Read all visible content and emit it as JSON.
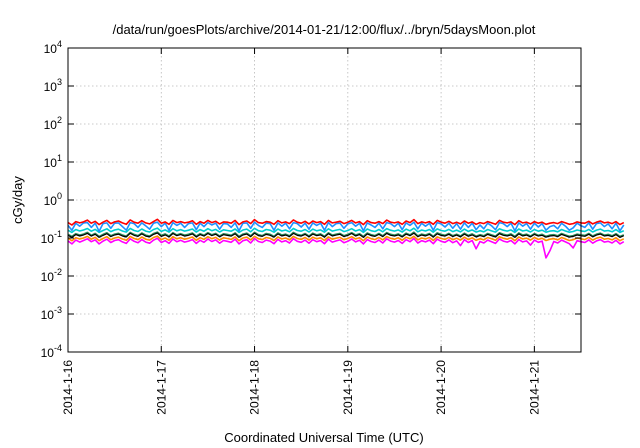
{
  "chart_data": {
    "type": "line",
    "title": "/data/run/goesPlots/archive/2014-01-21/12:00/flux/../bryn/5daysMoon.plot",
    "xlabel": "Coordinated Universal Time (UTC)",
    "ylabel": "cGy/day",
    "yscale": "log",
    "ylim": [
      0.0001,
      10000
    ],
    "xlim": [
      "2014-01-16 00:00",
      "2014-01-21 12:00"
    ],
    "x_ticks": [
      "2014-1-16",
      "2014-1-17",
      "2014-1-18",
      "2014-1-19",
      "2014-1-20",
      "2014-1-21"
    ],
    "y_ticks": [
      {
        "value": 0.0001,
        "base": "10",
        "exp": "-4"
      },
      {
        "value": 0.001,
        "base": "10",
        "exp": "-3"
      },
      {
        "value": 0.01,
        "base": "10",
        "exp": "-2"
      },
      {
        "value": 0.1,
        "base": "10",
        "exp": "-1"
      },
      {
        "value": 1,
        "base": "10",
        "exp": "0"
      },
      {
        "value": 10,
        "base": "10",
        "exp": "1"
      },
      {
        "value": 100,
        "base": "10",
        "exp": "2"
      },
      {
        "value": 1000,
        "base": "10",
        "exp": "3"
      },
      {
        "value": 10000,
        "base": "10",
        "exp": "4"
      }
    ],
    "grid": true,
    "legend": "none",
    "sample_interval_hours": 1,
    "series": [
      {
        "color": "#ff00ff",
        "values": [
          0.084,
          0.07,
          0.088,
          0.078,
          0.086,
          0.095,
          0.08,
          0.089,
          0.07,
          0.083,
          0.093,
          0.076,
          0.086,
          0.09,
          0.079,
          0.072,
          0.095,
          0.082,
          0.075,
          0.091,
          0.078,
          0.073,
          0.088,
          0.098,
          0.076,
          0.085,
          0.072,
          0.094,
          0.08,
          0.087,
          0.078,
          0.083,
          0.091,
          0.072,
          0.087,
          0.077,
          0.094,
          0.081,
          0.089,
          0.073,
          0.086,
          0.082,
          0.077,
          0.093,
          0.07,
          0.085,
          0.09,
          0.074,
          0.097,
          0.081,
          0.076,
          0.088,
          0.083,
          0.071,
          0.092,
          0.079,
          0.085,
          0.074,
          0.096,
          0.082,
          0.077,
          0.088,
          0.073,
          0.09,
          0.08,
          0.086,
          0.071,
          0.093,
          0.078,
          0.084,
          0.089,
          0.075,
          0.082,
          0.094,
          0.079,
          0.087,
          0.07,
          0.091,
          0.081,
          0.076,
          0.088,
          0.074,
          0.095,
          0.083,
          0.078,
          0.086,
          0.072,
          0.09,
          0.08,
          0.097,
          0.074,
          0.085,
          0.079,
          0.088,
          0.071,
          0.093,
          0.082,
          0.077,
          0.089,
          0.075,
          0.084,
          0.063,
          0.09,
          0.076,
          0.086,
          0.052,
          0.081,
          0.074,
          0.088,
          0.08,
          0.072,
          0.094,
          0.083,
          0.078,
          0.086,
          0.07,
          0.091,
          0.079,
          0.084,
          0.065,
          0.088,
          0.077,
          0.083,
          0.03,
          0.046,
          0.081,
          0.074,
          0.088,
          0.079,
          0.071,
          0.055,
          0.085,
          0.08,
          0.076,
          0.089,
          0.073,
          0.084,
          0.09,
          0.078,
          0.082,
          0.074,
          0.087,
          0.07,
          0.08
        ]
      },
      {
        "color": "#ff8c00",
        "values": [
          0.098,
          0.085,
          0.102,
          0.094,
          0.1,
          0.11,
          0.093,
          0.104,
          0.085,
          0.097,
          0.108,
          0.09,
          0.1,
          0.105,
          0.094,
          0.087,
          0.11,
          0.097,
          0.09,
          0.106,
          0.093,
          0.088,
          0.103,
          0.112,
          0.091,
          0.1,
          0.087,
          0.108,
          0.095,
          0.102,
          0.093,
          0.098,
          0.106,
          0.087,
          0.102,
          0.092,
          0.108,
          0.096,
          0.104,
          0.088,
          0.101,
          0.097,
          0.092,
          0.107,
          0.085,
          0.1,
          0.105,
          0.089,
          0.111,
          0.096,
          0.091,
          0.103,
          0.098,
          0.086,
          0.106,
          0.094,
          0.1,
          0.089,
          0.11,
          0.097,
          0.092,
          0.103,
          0.088,
          0.105,
          0.095,
          0.101,
          0.086,
          0.107,
          0.093,
          0.099,
          0.104,
          0.09,
          0.097,
          0.108,
          0.094,
          0.102,
          0.085,
          0.106,
          0.096,
          0.091,
          0.103,
          0.089,
          0.109,
          0.098,
          0.093,
          0.101,
          0.087,
          0.105,
          0.095,
          0.111,
          0.089,
          0.1,
          0.094,
          0.103,
          0.086,
          0.107,
          0.097,
          0.092,
          0.104,
          0.09,
          0.099,
          0.088,
          0.105,
          0.091,
          0.101,
          0.087,
          0.096,
          0.089,
          0.103,
          0.095,
          0.087,
          0.108,
          0.098,
          0.093,
          0.101,
          0.085,
          0.106,
          0.094,
          0.099,
          0.088,
          0.103,
          0.092,
          0.098,
          0.086,
          0.093,
          0.096,
          0.089,
          0.103,
          0.094,
          0.086,
          0.09,
          0.1,
          0.095,
          0.091,
          0.104,
          0.088,
          0.099,
          0.105,
          0.093,
          0.097,
          0.089,
          0.102,
          0.085,
          0.095
        ]
      },
      {
        "color": "#2e8b57",
        "values": [
          0.125,
          0.11,
          0.13,
          0.12,
          0.127,
          0.14,
          0.118,
          0.132,
          0.11,
          0.124,
          0.137,
          0.115,
          0.127,
          0.133,
          0.12,
          0.112,
          0.14,
          0.124,
          0.116,
          0.135,
          0.119,
          0.113,
          0.131,
          0.143,
          0.117,
          0.128,
          0.112,
          0.138,
          0.121,
          0.13,
          0.119,
          0.125,
          0.135,
          0.112,
          0.13,
          0.118,
          0.138,
          0.122,
          0.132,
          0.113,
          0.129,
          0.124,
          0.118,
          0.136,
          0.11,
          0.127,
          0.134,
          0.114,
          0.141,
          0.122,
          0.116,
          0.131,
          0.125,
          0.111,
          0.135,
          0.12,
          0.127,
          0.114,
          0.14,
          0.124,
          0.118,
          0.131,
          0.113,
          0.134,
          0.121,
          0.128,
          0.111,
          0.137,
          0.119,
          0.126,
          0.132,
          0.115,
          0.124,
          0.138,
          0.12,
          0.13,
          0.11,
          0.135,
          0.122,
          0.116,
          0.131,
          0.114,
          0.139,
          0.125,
          0.119,
          0.128,
          0.112,
          0.134,
          0.121,
          0.142,
          0.114,
          0.127,
          0.12,
          0.131,
          0.111,
          0.136,
          0.124,
          0.118,
          0.132,
          0.115,
          0.126,
          0.113,
          0.134,
          0.117,
          0.128,
          0.112,
          0.122,
          0.114,
          0.131,
          0.121,
          0.112,
          0.137,
          0.125,
          0.119,
          0.128,
          0.11,
          0.135,
          0.12,
          0.126,
          0.113,
          0.131,
          0.118,
          0.125,
          0.111,
          0.119,
          0.122,
          0.114,
          0.131,
          0.12,
          0.111,
          0.116,
          0.127,
          0.121,
          0.117,
          0.132,
          0.113,
          0.126,
          0.134,
          0.119,
          0.124,
          0.114,
          0.13,
          0.11,
          0.121
        ]
      },
      {
        "color": "#00ced1",
        "values": [
          0.16,
          0.14,
          0.167,
          0.153,
          0.162,
          0.178,
          0.151,
          0.168,
          0.14,
          0.158,
          0.175,
          0.147,
          0.162,
          0.17,
          0.153,
          0.143,
          0.179,
          0.158,
          0.148,
          0.172,
          0.152,
          0.144,
          0.167,
          0.182,
          0.149,
          0.163,
          0.143,
          0.176,
          0.155,
          0.166,
          0.152,
          0.16,
          0.172,
          0.143,
          0.166,
          0.151,
          0.176,
          0.156,
          0.168,
          0.144,
          0.164,
          0.158,
          0.151,
          0.173,
          0.14,
          0.162,
          0.171,
          0.146,
          0.18,
          0.156,
          0.148,
          0.167,
          0.16,
          0.142,
          0.172,
          0.153,
          0.162,
          0.146,
          0.178,
          0.158,
          0.151,
          0.167,
          0.144,
          0.171,
          0.155,
          0.163,
          0.142,
          0.175,
          0.152,
          0.161,
          0.168,
          0.147,
          0.158,
          0.176,
          0.153,
          0.166,
          0.14,
          0.172,
          0.156,
          0.148,
          0.167,
          0.146,
          0.177,
          0.16,
          0.152,
          0.163,
          0.143,
          0.171,
          0.155,
          0.181,
          0.146,
          0.162,
          0.153,
          0.167,
          0.142,
          0.174,
          0.158,
          0.151,
          0.168,
          0.147,
          0.161,
          0.145,
          0.171,
          0.149,
          0.163,
          0.143,
          0.156,
          0.146,
          0.167,
          0.154,
          0.143,
          0.175,
          0.16,
          0.152,
          0.163,
          0.14,
          0.172,
          0.153,
          0.161,
          0.144,
          0.167,
          0.151,
          0.16,
          0.142,
          0.152,
          0.156,
          0.146,
          0.167,
          0.153,
          0.142,
          0.148,
          0.162,
          0.154,
          0.149,
          0.168,
          0.144,
          0.161,
          0.171,
          0.152,
          0.158,
          0.146,
          0.166,
          0.14,
          0.155
        ]
      },
      {
        "color": "#1e90ff",
        "values": [
          0.215,
          0.16,
          0.245,
          0.205,
          0.25,
          0.255,
          0.19,
          0.245,
          0.15,
          0.24,
          0.25,
          0.18,
          0.245,
          0.25,
          0.2,
          0.16,
          0.255,
          0.24,
          0.19,
          0.25,
          0.21,
          0.17,
          0.245,
          0.26,
          0.2,
          0.245,
          0.16,
          0.255,
          0.215,
          0.245,
          0.19,
          0.24,
          0.25,
          0.165,
          0.245,
          0.2,
          0.255,
          0.22,
          0.245,
          0.17,
          0.24,
          0.235,
          0.19,
          0.25,
          0.155,
          0.245,
          0.25,
          0.18,
          0.26,
          0.215,
          0.19,
          0.245,
          0.24,
          0.16,
          0.25,
          0.205,
          0.245,
          0.175,
          0.255,
          0.24,
          0.195,
          0.245,
          0.17,
          0.25,
          0.215,
          0.245,
          0.16,
          0.255,
          0.2,
          0.24,
          0.245,
          0.18,
          0.235,
          0.255,
          0.205,
          0.245,
          0.155,
          0.25,
          0.22,
          0.19,
          0.245,
          0.175,
          0.255,
          0.24,
          0.2,
          0.245,
          0.165,
          0.25,
          0.215,
          0.26,
          0.175,
          0.245,
          0.205,
          0.245,
          0.16,
          0.255,
          0.235,
          0.195,
          0.245,
          0.18,
          0.24,
          0.17,
          0.25,
          0.19,
          0.245,
          0.165,
          0.22,
          0.175,
          0.245,
          0.21,
          0.165,
          0.255,
          0.24,
          0.2,
          0.245,
          0.155,
          0.25,
          0.205,
          0.24,
          0.17,
          0.245,
          0.195,
          0.24,
          0.16,
          0.2,
          0.215,
          0.175,
          0.245,
          0.205,
          0.16,
          0.185,
          0.245,
          0.21,
          0.19,
          0.25,
          0.17,
          0.24,
          0.25,
          0.2,
          0.235,
          0.175,
          0.245,
          0.155,
          0.22
        ]
      },
      {
        "color": "#ff0000",
        "values": [
          0.255,
          0.22,
          0.27,
          0.25,
          0.265,
          0.295,
          0.245,
          0.275,
          0.225,
          0.26,
          0.29,
          0.24,
          0.265,
          0.28,
          0.25,
          0.23,
          0.3,
          0.26,
          0.245,
          0.285,
          0.25,
          0.235,
          0.27,
          0.31,
          0.245,
          0.265,
          0.23,
          0.29,
          0.255,
          0.27,
          0.25,
          0.26,
          0.285,
          0.23,
          0.27,
          0.245,
          0.29,
          0.255,
          0.275,
          0.235,
          0.265,
          0.26,
          0.245,
          0.29,
          0.225,
          0.265,
          0.28,
          0.24,
          0.305,
          0.255,
          0.245,
          0.27,
          0.26,
          0.23,
          0.285,
          0.25,
          0.265,
          0.24,
          0.3,
          0.26,
          0.245,
          0.275,
          0.235,
          0.28,
          0.255,
          0.27,
          0.23,
          0.29,
          0.25,
          0.26,
          0.275,
          0.24,
          0.26,
          0.29,
          0.25,
          0.27,
          0.225,
          0.285,
          0.255,
          0.245,
          0.27,
          0.24,
          0.295,
          0.26,
          0.25,
          0.265,
          0.23,
          0.28,
          0.255,
          0.305,
          0.24,
          0.265,
          0.25,
          0.27,
          0.23,
          0.29,
          0.26,
          0.245,
          0.275,
          0.24,
          0.26,
          0.235,
          0.28,
          0.245,
          0.265,
          0.23,
          0.255,
          0.24,
          0.27,
          0.25,
          0.23,
          0.29,
          0.26,
          0.25,
          0.265,
          0.225,
          0.285,
          0.25,
          0.26,
          0.235,
          0.27,
          0.245,
          0.26,
          0.23,
          0.245,
          0.255,
          0.24,
          0.27,
          0.25,
          0.23,
          0.24,
          0.265,
          0.25,
          0.245,
          0.275,
          0.235,
          0.26,
          0.28,
          0.25,
          0.26,
          0.24,
          0.27,
          0.225,
          0.255
        ]
      },
      {
        "color": "#000000",
        "values": [
          0.118,
          0.104,
          0.123,
          0.113,
          0.12,
          0.132,
          0.112,
          0.125,
          0.104,
          0.117,
          0.13,
          0.109,
          0.12,
          0.126,
          0.113,
          0.106,
          0.133,
          0.117,
          0.11,
          0.128,
          0.112,
          0.107,
          0.124,
          0.135,
          0.11,
          0.121,
          0.106,
          0.131,
          0.115,
          0.123,
          0.112,
          0.118,
          0.128,
          0.106,
          0.123,
          0.112,
          0.131,
          0.116,
          0.125,
          0.107,
          0.122,
          0.117,
          0.112,
          0.129,
          0.104,
          0.12,
          0.127,
          0.108,
          0.134,
          0.116,
          0.11,
          0.124,
          0.118,
          0.105,
          0.128,
          0.113,
          0.12,
          0.108,
          0.132,
          0.117,
          0.112,
          0.124,
          0.107,
          0.127,
          0.115,
          0.121,
          0.105,
          0.13,
          0.113,
          0.119,
          0.125,
          0.109,
          0.117,
          0.131,
          0.113,
          0.123,
          0.104,
          0.128,
          0.116,
          0.11,
          0.124,
          0.108,
          0.132,
          0.118,
          0.113,
          0.121,
          0.106,
          0.127,
          0.115,
          0.134,
          0.108,
          0.12,
          0.113,
          0.124,
          0.105,
          0.129,
          0.117,
          0.112,
          0.125,
          0.109,
          0.119,
          0.107,
          0.127,
          0.111,
          0.121,
          0.106,
          0.116,
          0.108,
          0.124,
          0.114,
          0.106,
          0.13,
          0.118,
          0.113,
          0.121,
          0.104,
          0.128,
          0.113,
          0.119,
          0.107,
          0.124,
          0.112,
          0.118,
          0.105,
          0.113,
          0.116,
          0.108,
          0.124,
          0.114,
          0.105,
          0.11,
          0.12,
          0.114,
          0.111,
          0.125,
          0.107,
          0.119,
          0.127,
          0.113,
          0.117,
          0.108,
          0.123,
          0.104,
          0.115
        ]
      }
    ]
  }
}
